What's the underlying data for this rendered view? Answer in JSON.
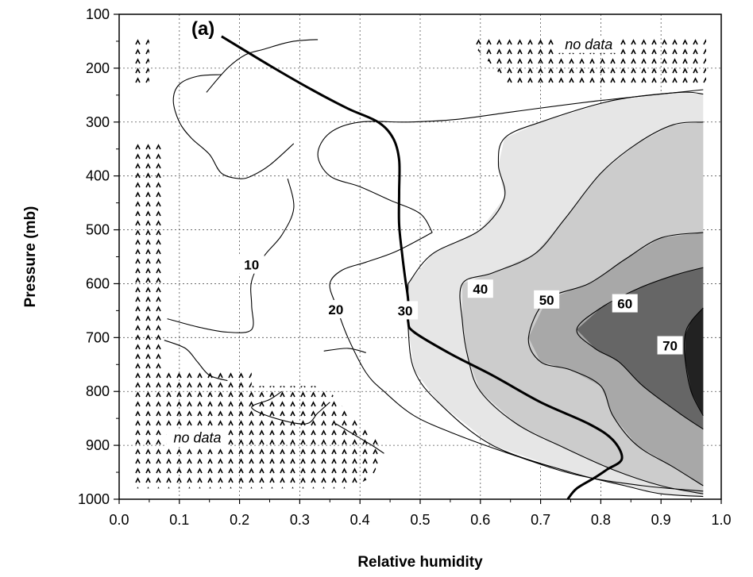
{
  "chart_data": {
    "type": "contour",
    "panel_label": "(a)",
    "xlabel": "Relative humidity",
    "ylabel": "Pressure (mb)",
    "xlim": [
      0.0,
      1.0
    ],
    "ylim": [
      1000,
      100
    ],
    "y_inverted": true,
    "grid": true,
    "grid_style": "dotted",
    "x_ticks": [
      0.0,
      0.1,
      0.2,
      0.3,
      0.4,
      0.5,
      0.6,
      0.7,
      0.8,
      0.9,
      1.0
    ],
    "x_tick_labels": [
      "0.0",
      "0.1",
      "0.2",
      "0.3",
      "0.4",
      "0.5",
      "0.6",
      "0.7",
      "0.8",
      "0.9",
      "1.0"
    ],
    "y_ticks": [
      100,
      200,
      300,
      400,
      500,
      600,
      700,
      800,
      900,
      1000
    ],
    "y_tick_labels": [
      "100",
      "200",
      "300",
      "400",
      "500",
      "600",
      "700",
      "800",
      "900",
      "1000"
    ],
    "shading": "fill darkens with contour level",
    "filled_regions": [
      {
        "level": 30,
        "color": "#e6e6e6",
        "points": [
          [
            0.48,
            600
          ],
          [
            0.52,
            545
          ],
          [
            0.6,
            500
          ],
          [
            0.64,
            440
          ],
          [
            0.63,
            380
          ],
          [
            0.64,
            330
          ],
          [
            0.7,
            300
          ],
          [
            0.82,
            260
          ],
          [
            0.93,
            245
          ],
          [
            0.97,
            248
          ],
          [
            0.97,
            995
          ],
          [
            0.9,
            990
          ],
          [
            0.84,
            975
          ],
          [
            0.75,
            950
          ],
          [
            0.62,
            900
          ],
          [
            0.53,
            820
          ],
          [
            0.49,
            760
          ],
          [
            0.48,
            680
          ]
        ]
      },
      {
        "level": 40,
        "color": "#cccccc",
        "points": [
          [
            0.57,
            600
          ],
          [
            0.62,
            580
          ],
          [
            0.69,
            545
          ],
          [
            0.74,
            480
          ],
          [
            0.8,
            395
          ],
          [
            0.86,
            340
          ],
          [
            0.92,
            305
          ],
          [
            0.97,
            300
          ],
          [
            0.97,
            990
          ],
          [
            0.9,
            975
          ],
          [
            0.82,
            945
          ],
          [
            0.74,
            905
          ],
          [
            0.66,
            860
          ],
          [
            0.6,
            800
          ],
          [
            0.58,
            740
          ],
          [
            0.57,
            670
          ]
        ]
      },
      {
        "level": 50,
        "color": "#a8a8a8",
        "points": [
          [
            0.68,
            700
          ],
          [
            0.71,
            630
          ],
          [
            0.78,
            600
          ],
          [
            0.84,
            555
          ],
          [
            0.9,
            515
          ],
          [
            0.97,
            505
          ],
          [
            0.97,
            975
          ],
          [
            0.92,
            940
          ],
          [
            0.86,
            900
          ],
          [
            0.82,
            845
          ],
          [
            0.8,
            790
          ],
          [
            0.75,
            760
          ],
          [
            0.7,
            745
          ]
        ]
      },
      {
        "level": 60,
        "color": "#666666",
        "points": [
          [
            0.76,
            685
          ],
          [
            0.8,
            645
          ],
          [
            0.86,
            610
          ],
          [
            0.92,
            585
          ],
          [
            0.97,
            570
          ],
          [
            0.97,
            870
          ],
          [
            0.93,
            840
          ],
          [
            0.87,
            790
          ],
          [
            0.83,
            745
          ],
          [
            0.79,
            720
          ]
        ]
      },
      {
        "level": 70,
        "color": "#222222",
        "points": [
          [
            0.94,
            695
          ],
          [
            0.95,
            670
          ],
          [
            0.97,
            645
          ],
          [
            0.97,
            845
          ],
          [
            0.95,
            800
          ],
          [
            0.94,
            740
          ]
        ]
      }
    ],
    "contour_lines": [
      {
        "level": 10,
        "points": [
          [
            0.145,
            245
          ],
          [
            0.18,
            200
          ],
          [
            0.21,
            175
          ],
          [
            0.24,
            165
          ],
          [
            0.27,
            155
          ],
          [
            0.29,
            150
          ],
          [
            0.31,
            148
          ],
          [
            0.33,
            147
          ]
        ]
      },
      {
        "level": 10,
        "points": [
          [
            0.29,
            340
          ],
          [
            0.25,
            380
          ],
          [
            0.22,
            400
          ],
          [
            0.2,
            405
          ],
          [
            0.17,
            395
          ],
          [
            0.15,
            360
          ],
          [
            0.12,
            330
          ],
          [
            0.1,
            300
          ],
          [
            0.09,
            260
          ],
          [
            0.1,
            230
          ],
          [
            0.13,
            215
          ],
          [
            0.17,
            212
          ]
        ]
      },
      {
        "level": 10,
        "points": [
          [
            0.28,
            405
          ],
          [
            0.29,
            460
          ],
          [
            0.27,
            510
          ],
          [
            0.24,
            550
          ],
          [
            0.22,
            595
          ],
          [
            0.22,
            640
          ],
          [
            0.22,
            685
          ],
          [
            0.18,
            690
          ],
          [
            0.13,
            680
          ],
          [
            0.08,
            665
          ]
        ]
      },
      {
        "level": 10,
        "points": [
          [
            0.075,
            705
          ],
          [
            0.11,
            720
          ],
          [
            0.13,
            745
          ],
          [
            0.15,
            770
          ],
          [
            0.18,
            780
          ]
        ]
      },
      {
        "level": 10,
        "points": [
          [
            0.34,
            725
          ],
          [
            0.38,
            720
          ],
          [
            0.41,
            728
          ]
        ]
      },
      {
        "level": 20,
        "points": [
          [
            0.52,
            505
          ],
          [
            0.5,
            470
          ],
          [
            0.45,
            445
          ],
          [
            0.4,
            420
          ],
          [
            0.35,
            400
          ],
          [
            0.33,
            360
          ],
          [
            0.35,
            320
          ],
          [
            0.4,
            300
          ],
          [
            0.48,
            300
          ],
          [
            0.56,
            295
          ],
          [
            0.66,
            280
          ],
          [
            0.8,
            260
          ],
          [
            0.97,
            240
          ]
        ]
      },
      {
        "level": 20,
        "points": [
          [
            0.52,
            505
          ],
          [
            0.46,
            540
          ],
          [
            0.41,
            560
          ],
          [
            0.37,
            575
          ],
          [
            0.35,
            600
          ],
          [
            0.36,
            640
          ],
          [
            0.38,
            700
          ],
          [
            0.41,
            765
          ],
          [
            0.44,
            800
          ],
          [
            0.49,
            845
          ],
          [
            0.56,
            880
          ],
          [
            0.66,
            920
          ],
          [
            0.76,
            955
          ],
          [
            0.87,
            975
          ],
          [
            0.97,
            985
          ]
        ]
      },
      {
        "level": 20,
        "points": [
          [
            0.27,
            800
          ],
          [
            0.25,
            815
          ],
          [
            0.22,
            830
          ],
          [
            0.26,
            850
          ],
          [
            0.31,
            860
          ],
          [
            0.33,
            840
          ],
          [
            0.35,
            820
          ]
        ]
      },
      {
        "level": 20,
        "points": [
          [
            0.36,
            860
          ],
          [
            0.39,
            880
          ],
          [
            0.42,
            900
          ],
          [
            0.44,
            915
          ]
        ]
      },
      {
        "level": 30,
        "points": [
          [
            0.48,
            600
          ],
          [
            0.48,
            680
          ],
          [
            0.49,
            760
          ],
          [
            0.53,
            820
          ],
          [
            0.62,
            900
          ],
          [
            0.75,
            950
          ],
          [
            0.84,
            975
          ],
          [
            0.9,
            990
          ],
          [
            0.97,
            995
          ]
        ]
      },
      {
        "level": 30,
        "points": [
          [
            0.48,
            600
          ],
          [
            0.52,
            545
          ],
          [
            0.6,
            500
          ],
          [
            0.64,
            440
          ],
          [
            0.63,
            380
          ],
          [
            0.64,
            330
          ],
          [
            0.7,
            300
          ],
          [
            0.82,
            260
          ],
          [
            0.93,
            245
          ],
          [
            0.97,
            248
          ]
        ]
      },
      {
        "level": 40,
        "points": [
          [
            0.97,
            300
          ],
          [
            0.92,
            305
          ],
          [
            0.86,
            340
          ],
          [
            0.8,
            395
          ],
          [
            0.74,
            480
          ],
          [
            0.69,
            545
          ],
          [
            0.62,
            580
          ],
          [
            0.57,
            600
          ],
          [
            0.57,
            670
          ],
          [
            0.58,
            740
          ],
          [
            0.6,
            800
          ],
          [
            0.66,
            860
          ],
          [
            0.74,
            905
          ],
          [
            0.82,
            945
          ],
          [
            0.9,
            975
          ],
          [
            0.97,
            990
          ]
        ]
      },
      {
        "level": 50,
        "points": [
          [
            0.97,
            505
          ],
          [
            0.9,
            515
          ],
          [
            0.84,
            555
          ],
          [
            0.78,
            600
          ],
          [
            0.71,
            630
          ],
          [
            0.68,
            700
          ],
          [
            0.7,
            745
          ],
          [
            0.75,
            760
          ],
          [
            0.8,
            790
          ],
          [
            0.82,
            845
          ],
          [
            0.86,
            900
          ],
          [
            0.92,
            940
          ],
          [
            0.97,
            975
          ]
        ]
      },
      {
        "level": 60,
        "points": [
          [
            0.97,
            570
          ],
          [
            0.92,
            585
          ],
          [
            0.86,
            610
          ],
          [
            0.8,
            645
          ],
          [
            0.76,
            685
          ],
          [
            0.79,
            720
          ],
          [
            0.83,
            745
          ],
          [
            0.87,
            790
          ],
          [
            0.93,
            840
          ],
          [
            0.97,
            870
          ]
        ]
      },
      {
        "level": 70,
        "points": [
          [
            0.97,
            645
          ],
          [
            0.95,
            670
          ],
          [
            0.94,
            695
          ],
          [
            0.94,
            740
          ],
          [
            0.95,
            800
          ],
          [
            0.97,
            845
          ]
        ]
      }
    ],
    "contour_labels": [
      {
        "text": "10",
        "x": 0.22,
        "y": 565
      },
      {
        "text": "20",
        "x": 0.36,
        "y": 648
      },
      {
        "text": "30",
        "x": 0.475,
        "y": 650
      },
      {
        "text": "40",
        "x": 0.6,
        "y": 610
      },
      {
        "text": "50",
        "x": 0.71,
        "y": 630
      },
      {
        "text": "60",
        "x": 0.84,
        "y": 637
      },
      {
        "text": "70",
        "x": 0.915,
        "y": 715
      }
    ],
    "profile_line": {
      "style": "bold solid",
      "points": [
        [
          0.17,
          141
        ],
        [
          0.25,
          195
        ],
        [
          0.32,
          240
        ],
        [
          0.38,
          275
        ],
        [
          0.43,
          300
        ],
        [
          0.455,
          330
        ],
        [
          0.465,
          370
        ],
        [
          0.465,
          430
        ],
        [
          0.465,
          490
        ],
        [
          0.47,
          545
        ],
        [
          0.475,
          590
        ],
        [
          0.48,
          630
        ],
        [
          0.48,
          670
        ],
        [
          0.49,
          690
        ],
        [
          0.55,
          730
        ],
        [
          0.62,
          770
        ],
        [
          0.7,
          820
        ],
        [
          0.78,
          860
        ],
        [
          0.82,
          890
        ],
        [
          0.835,
          925
        ],
        [
          0.81,
          945
        ],
        [
          0.79,
          960
        ],
        [
          0.76,
          980
        ],
        [
          0.745,
          1000
        ]
      ]
    },
    "no_data_regions": [
      {
        "points": [
          [
            0.02,
            145
          ],
          [
            0.05,
            145
          ],
          [
            0.05,
            230
          ],
          [
            0.02,
            230
          ]
        ]
      },
      {
        "points": [
          [
            0.59,
            145
          ],
          [
            0.975,
            145
          ],
          [
            0.975,
            232
          ],
          [
            0.65,
            232
          ],
          [
            0.59,
            160
          ]
        ]
      },
      {
        "points": [
          [
            0.02,
            340
          ],
          [
            0.07,
            340
          ],
          [
            0.07,
            980
          ],
          [
            0.02,
            980
          ]
        ]
      },
      {
        "points": [
          [
            0.07,
            765
          ],
          [
            0.22,
            765
          ],
          [
            0.22,
            790
          ],
          [
            0.3,
            790
          ],
          [
            0.33,
            790
          ],
          [
            0.35,
            800
          ],
          [
            0.38,
            840
          ],
          [
            0.42,
            880
          ],
          [
            0.44,
            910
          ],
          [
            0.42,
            960
          ],
          [
            0.38,
            980
          ],
          [
            0.07,
            980
          ]
        ]
      }
    ],
    "no_data_labels": [
      {
        "text": "no data",
        "x": 0.78,
        "y": 163
      },
      {
        "text": "no data",
        "x": 0.13,
        "y": 893
      }
    ]
  }
}
